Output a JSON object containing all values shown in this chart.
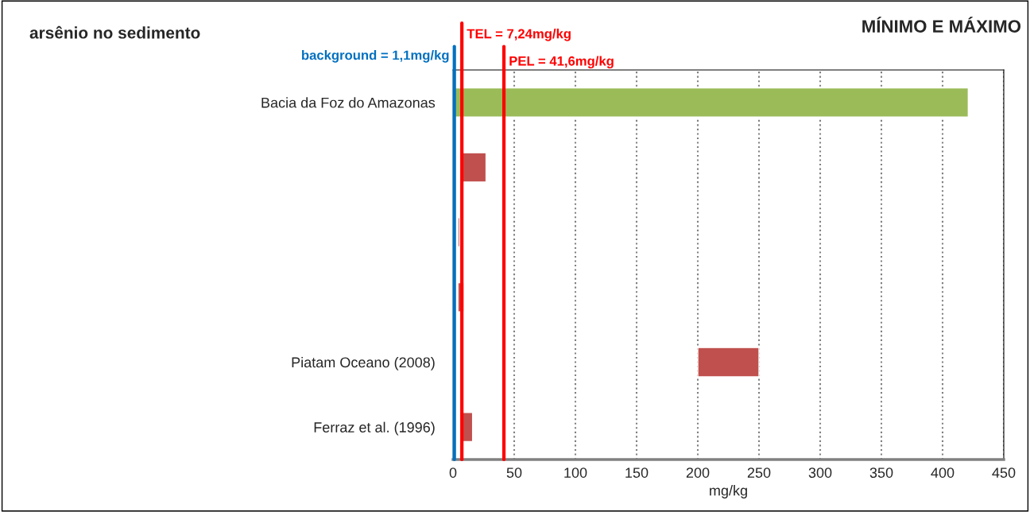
{
  "chart_data": {
    "type": "bar",
    "orientation": "horizontal",
    "title": "arsênio no sedimento",
    "subtitle": "MÍNIMO E MÁXIMO",
    "xlabel": "mg/kg",
    "categories": [
      "Bacia da Foz do Amazonas",
      null,
      null,
      null,
      "Piatam Oceano (2008)",
      "Ferraz et al. (1996)"
    ],
    "base": [
      1,
      8,
      4,
      4,
      200,
      7
    ],
    "values": [
      420,
      19,
      1.5,
      5,
      50,
      9
    ],
    "colors": [
      "#9bbb59",
      "#c0504d",
      "#c0504d",
      "#c0504d",
      "#c0504d",
      "#c0504d"
    ],
    "xlim": [
      0,
      450
    ],
    "xticks": [
      0,
      50,
      100,
      150,
      200,
      250,
      300,
      350,
      400,
      450
    ],
    "grid": "x",
    "ref_lines": [
      {
        "axis": "x",
        "value": 1.1,
        "label": "background = 1,1mg/kg",
        "color": "#0070c0"
      },
      {
        "axis": "x",
        "value": 7.24,
        "label": "TEL = 7,24mg/kg",
        "color": "#ff0000"
      },
      {
        "axis": "x",
        "value": 41.6,
        "label": "PEL = 41,6mg/kg",
        "color": "#ff0000"
      }
    ]
  }
}
